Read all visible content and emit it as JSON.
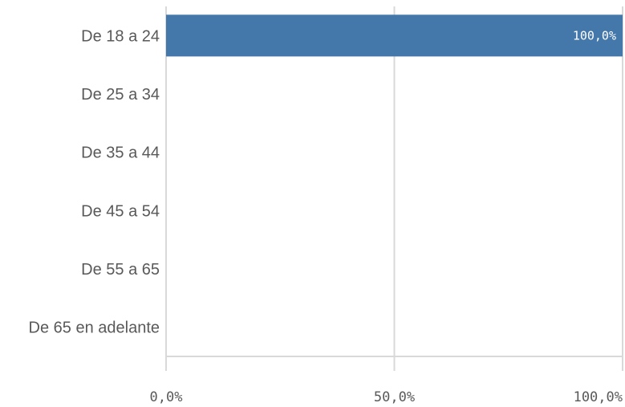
{
  "chart_data": {
    "type": "bar",
    "orientation": "horizontal",
    "categories": [
      "De 18 a 24",
      "De 25 a 34",
      "De 35 a 44",
      "De 45 a 54",
      "De 55 a 65",
      "De 65 en adelante"
    ],
    "values": [
      100.0,
      0,
      0,
      0,
      0,
      0
    ],
    "data_labels": [
      "100,0%",
      "",
      "",
      "",
      "",
      ""
    ],
    "xlim": [
      0,
      100
    ],
    "x_ticks": [
      0,
      50,
      100
    ],
    "x_tick_labels": [
      "0,0%",
      "50,0%",
      "100,0%"
    ],
    "grid": true,
    "bar_color": "#4477aa",
    "title": "",
    "xlabel": "",
    "ylabel": ""
  }
}
